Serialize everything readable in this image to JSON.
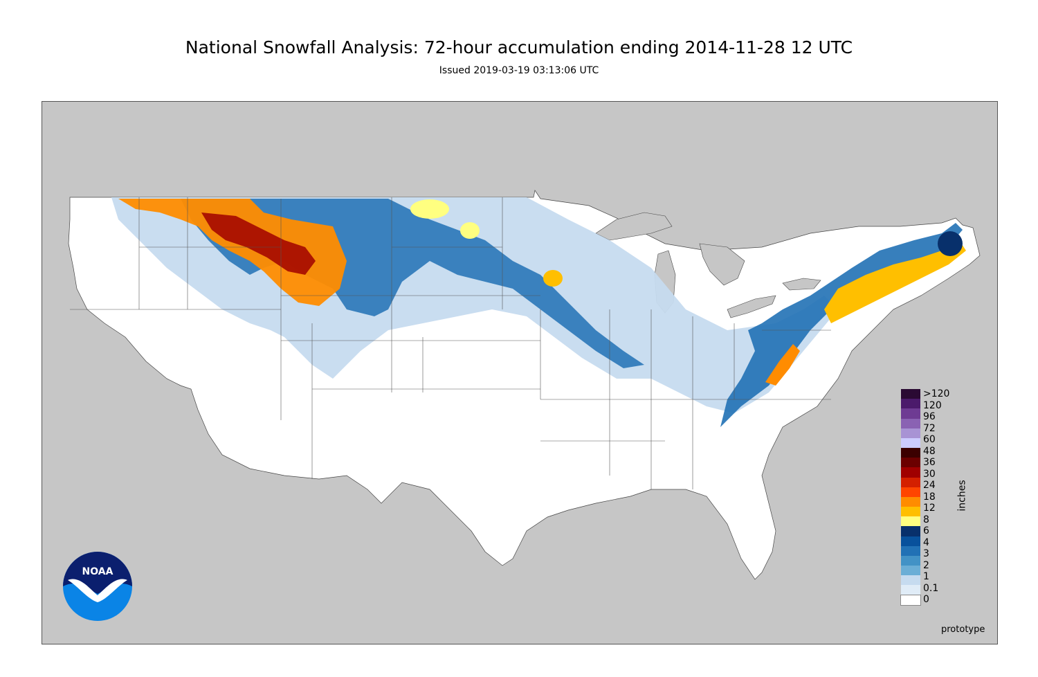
{
  "header": {
    "title": "National Snowfall Analysis: 72-hour accumulation ending 2014-11-28 12 UTC",
    "issued": "Issued 2019-03-19 03:13:06 UTC"
  },
  "legend": {
    "unit": "inches",
    "entries": [
      {
        "label": ">120",
        "color": "#2a0a33"
      },
      {
        "label": "120",
        "color": "#4b1a6b"
      },
      {
        "label": "96",
        "color": "#6e3b93"
      },
      {
        "label": "72",
        "color": "#8a62b3"
      },
      {
        "label": "60",
        "color": "#a893d4"
      },
      {
        "label": "48",
        "color": "#ccccff"
      },
      {
        "label": "36",
        "color": "#3b0000"
      },
      {
        "label": "30",
        "color": "#6b0000"
      },
      {
        "label": "24",
        "color": "#a00000"
      },
      {
        "label": "18",
        "color": "#d42000"
      },
      {
        "label": "12",
        "color": "#ff4500"
      },
      {
        "label": "8",
        "color": "#ff8c00"
      },
      {
        "label": "6",
        "color": "#ffbf00"
      },
      {
        "label": "4",
        "color": "#ffff80"
      },
      {
        "label": "3",
        "color": "#08306b"
      },
      {
        "label": "2",
        "color": "#08519c"
      },
      {
        "label": "1",
        "color": "#2171b5"
      },
      {
        "label": "0.1",
        "color": "#4292c6"
      },
      {
        "label": "0",
        "color": "#6baed6"
      }
    ],
    "extra_swatches": [
      "#c6dbef",
      "#e0ecf7",
      "#ffffff"
    ]
  },
  "map": {
    "land_color": "#ffffff",
    "ocean_color": "#c6c6c6",
    "heavy_color": "#ffbf00",
    "light_snow_color": "#c6dbef",
    "moderate_snow_color": "#2171b5"
  },
  "logo": {
    "text": "NOAA"
  },
  "watermark": "prototype"
}
